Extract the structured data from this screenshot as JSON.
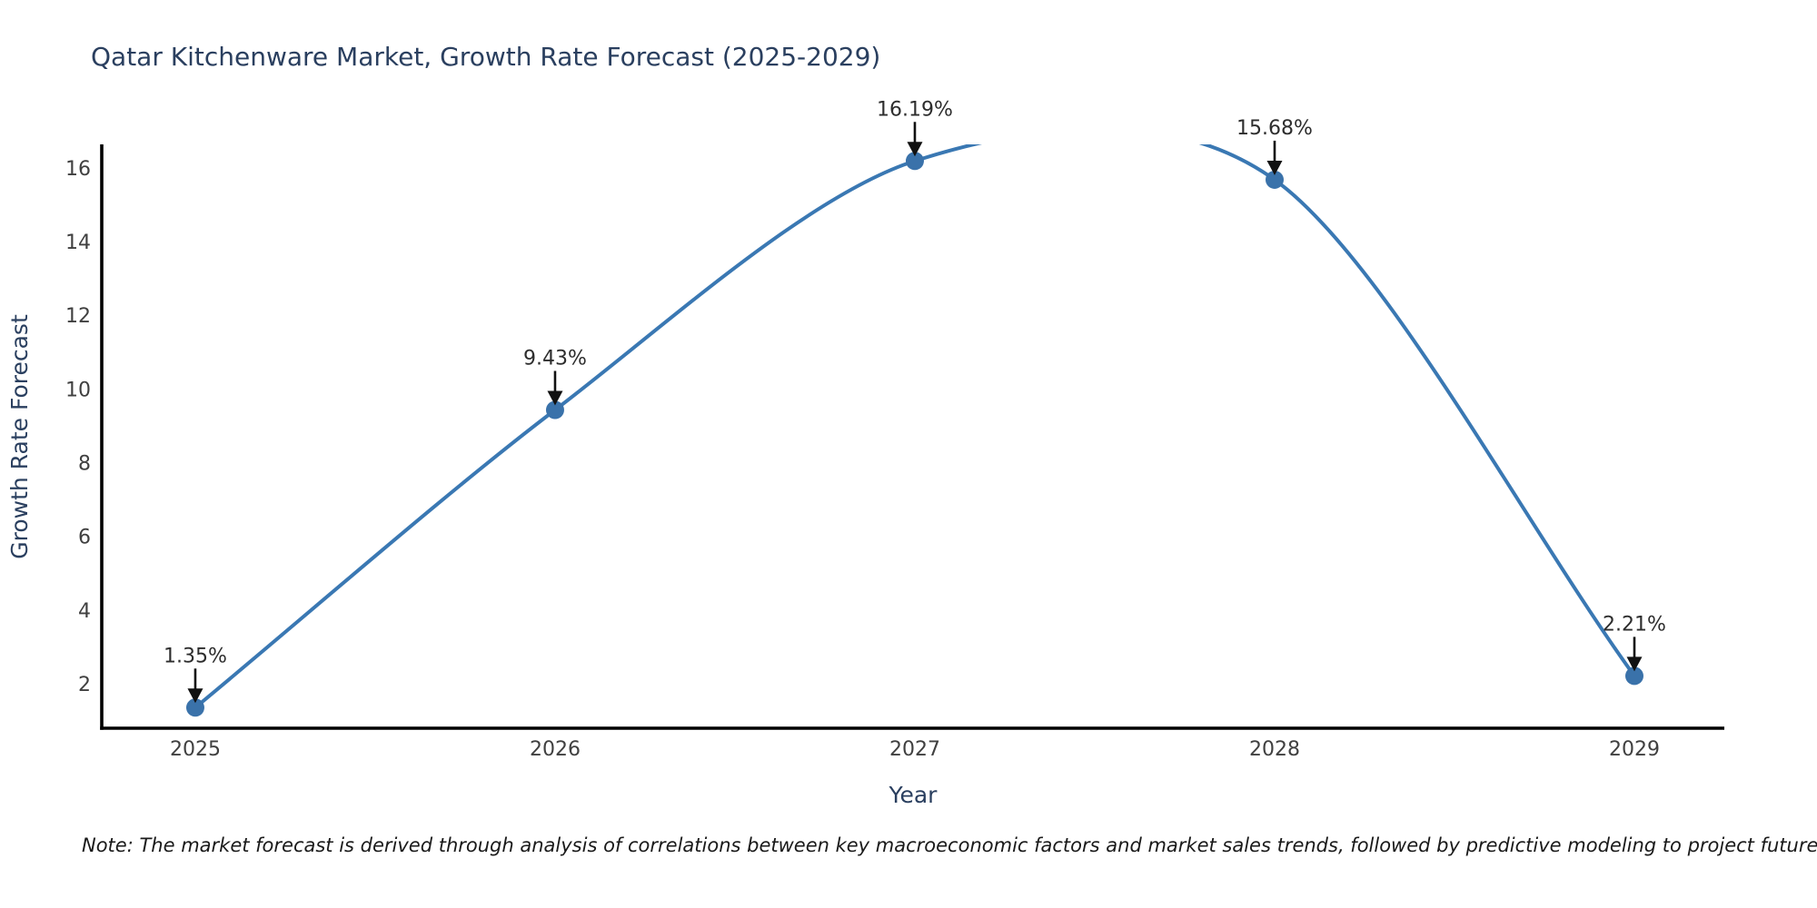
{
  "title": "Qatar Kitchenware Market, Growth Rate Forecast (2025-2029)",
  "note": "Note: The market forecast is derived through analysis of correlations between key macroeconomic factors and market sales trends, followed by predictive modeling to project future sales.",
  "chart_data": {
    "type": "line",
    "title": "Qatar Kitchenware Market, Growth Rate Forecast (2025-2029)",
    "xlabel": "Year",
    "ylabel": "Growth Rate Forecast",
    "x": [
      2025,
      2026,
      2027,
      2028,
      2029
    ],
    "values": [
      1.35,
      9.43,
      16.19,
      15.68,
      2.21
    ],
    "point_labels": [
      "1.35%",
      "9.43%",
      "16.19%",
      "15.68%",
      "2.21%"
    ],
    "x_tick_labels": [
      "2025",
      "2026",
      "2027",
      "2028",
      "2029"
    ],
    "y_ticks": [
      2,
      4,
      6,
      8,
      10,
      12,
      14,
      16
    ],
    "xlim": [
      2024.74,
      2029.25
    ],
    "ylim": [
      0.79,
      16.64
    ],
    "line_shape": "spline",
    "grid": false,
    "legend": false,
    "line_color": "#3a78b3",
    "marker_color": "#3a72aa",
    "spine_color": "#000000",
    "arrow_color": "#111111",
    "annotation_color": "#2d2d2d",
    "tick_color": "#404040",
    "title_color": "#2a3f5f",
    "axis_label_color": "#2a3f5f",
    "note_color": "#1a1a1a",
    "background_color": "#ffffff"
  }
}
